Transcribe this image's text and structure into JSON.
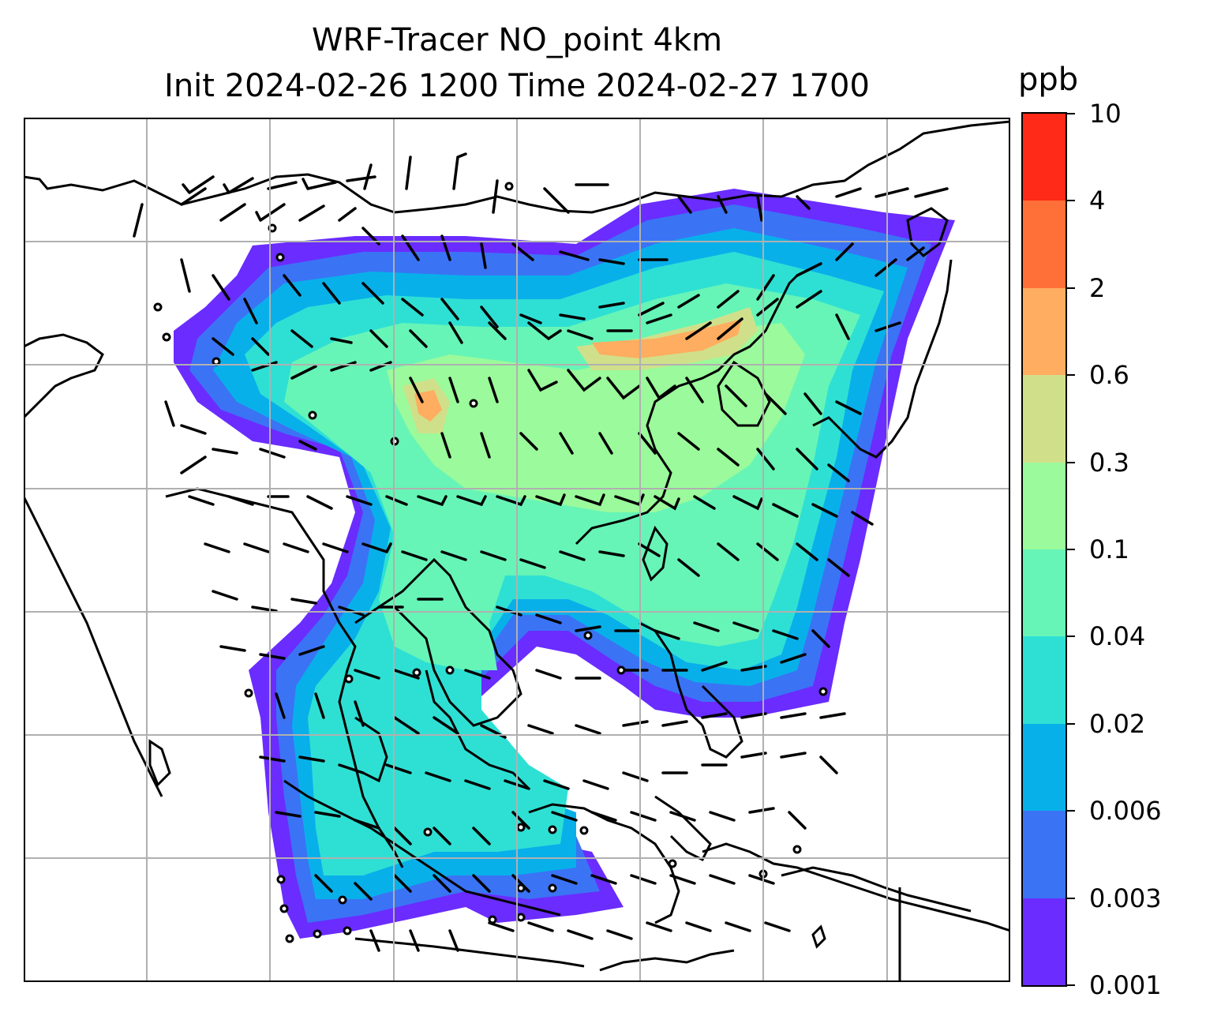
{
  "title": {
    "line1": "WRF-Tracer NO_point 4km",
    "line2": "Init 2024-02-26 1200 Time 2024-02-27 1700"
  },
  "colorbar": {
    "unit": "ppb",
    "levels": [
      "0.001",
      "0.003",
      "0.006",
      "0.02",
      "0.04",
      "0.1",
      "0.3",
      "0.6",
      "2",
      "4",
      "10"
    ],
    "colors": [
      "#6a2cff",
      "#3b73f5",
      "#08b0ea",
      "#2ee0d4",
      "#66f5b7",
      "#9bfa9b",
      "#d0e08a",
      "#ffad60",
      "#ff7038",
      "#ff2a18"
    ]
  },
  "map": {
    "grid": true,
    "wind_barbs": true,
    "station_markers": true
  }
}
